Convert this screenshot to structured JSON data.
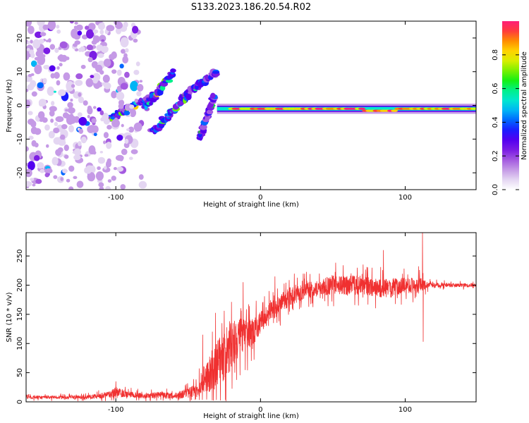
{
  "figure_title": "S133.2023.186.20.54.R02",
  "colors": {
    "snr_line": "#f03030",
    "frame": "#000000",
    "background": "#ffffff"
  },
  "colormap": [
    "#ffffff",
    "#e4d6f2",
    "#c59ae6",
    "#a45ae0",
    "#7b1ce4",
    "#5400f0",
    "#1c1cff",
    "#0066ff",
    "#00b4f5",
    "#00e6d0",
    "#00f08a",
    "#14f014",
    "#7af000",
    "#d8ee00",
    "#ffd200",
    "#ff8c00",
    "#ff3c3c",
    "#ff1e78"
  ],
  "chart_data": [
    {
      "type": "heatmap",
      "title": "",
      "xlabel": "Height of straight line (km)",
      "ylabel": "Frequency (Hz)",
      "xlim": [
        -162,
        149
      ],
      "ylim": [
        -25,
        25
      ],
      "x_ticks": [
        -100,
        0,
        100
      ],
      "x_tick_labels": [
        "-100",
        "0",
        "100"
      ],
      "y_ticks": [
        -20,
        -10,
        0,
        10,
        20
      ],
      "y_tick_labels": [
        "-20",
        "-10",
        "0",
        "10",
        "20"
      ],
      "colorbar": {
        "label": "Normalized spectral amplitude",
        "range": [
          0,
          1
        ],
        "ticks": [
          0.0,
          0.2,
          0.4,
          0.6,
          0.8
        ],
        "tick_labels": [
          "0.0",
          "0.2",
          "0.4",
          "0.6",
          "0.8"
        ]
      },
      "features": [
        {
          "name": "steady-carrier-ridge",
          "x_range": [
            -30,
            149
          ],
          "freq_hz": -1,
          "amplitude": 0.9
        },
        {
          "name": "rising-arc-1",
          "from": [
            -105,
            -4
          ],
          "to": [
            -75,
            3
          ],
          "amplitude": 0.3
        },
        {
          "name": "rising-arc-2",
          "from": [
            -80,
            -1
          ],
          "to": [
            -60,
            10
          ],
          "amplitude": 0.3
        },
        {
          "name": "rising-arc-3",
          "from": [
            -55,
            2
          ],
          "to": [
            -30,
            10
          ],
          "amplitude": 0.25
        },
        {
          "name": "descending-arc-1",
          "from": [
            -75,
            -8
          ],
          "to": [
            -50,
            3
          ],
          "amplitude": 0.3
        },
        {
          "name": "descending-arc-2",
          "from": [
            -42,
            -10
          ],
          "to": [
            -32,
            3
          ],
          "amplitude": 0.25
        },
        {
          "name": "noise-region",
          "x_range": [
            -162,
            -100
          ],
          "freq_range": [
            -25,
            25
          ],
          "amplitude": 0.1
        }
      ]
    },
    {
      "type": "line",
      "title": "",
      "xlabel": "Height of straight line (km)",
      "ylabel": "SNR (10 * v/v)",
      "xlim": [
        -162,
        149
      ],
      "ylim": [
        0,
        290
      ],
      "x_ticks": [
        -100,
        0,
        100
      ],
      "x_tick_labels": [
        "-100",
        "0",
        "100"
      ],
      "y_ticks": [
        0,
        50,
        100,
        150,
        200,
        250
      ],
      "y_tick_labels": [
        "0",
        "50",
        "100",
        "150",
        "200",
        "250"
      ],
      "series": [
        {
          "name": "SNR",
          "x": [
            -162,
            -140,
            -120,
            -105,
            -100,
            -90,
            -80,
            -70,
            -60,
            -50,
            -45,
            -40,
            -35,
            -30,
            -25,
            -20,
            -15,
            -10,
            -5,
            0,
            5,
            10,
            15,
            20,
            25,
            30,
            40,
            50,
            60,
            70,
            80,
            90,
            100,
            105,
            110,
            112,
            115,
            120,
            130,
            140,
            149
          ],
          "mean": [
            8,
            8,
            8,
            12,
            18,
            12,
            10,
            12,
            10,
            15,
            20,
            35,
            50,
            65,
            80,
            100,
            110,
            115,
            120,
            135,
            150,
            160,
            170,
            180,
            185,
            190,
            195,
            200,
            200,
            200,
            195,
            195,
            200,
            200,
            200,
            200,
            200,
            200,
            200,
            200,
            200
          ],
          "noise": [
            5,
            5,
            6,
            10,
            15,
            10,
            8,
            10,
            10,
            15,
            20,
            40,
            60,
            75,
            80,
            80,
            60,
            50,
            40,
            35,
            30,
            30,
            30,
            30,
            30,
            25,
            25,
            30,
            30,
            30,
            30,
            30,
            25,
            25,
            25,
            20,
            10,
            8,
            6,
            6,
            6
          ],
          "spikes": [
            {
              "x": -100,
              "value": 35
            },
            {
              "x": -40,
              "value": 115
            },
            {
              "x": -12,
              "value": 205
            },
            {
              "x": 10,
              "value": 215
            },
            {
              "x": 85,
              "value": 260
            },
            {
              "x": 112,
              "value": 290
            },
            {
              "x": 112.5,
              "value": 103
            }
          ]
        }
      ]
    }
  ]
}
